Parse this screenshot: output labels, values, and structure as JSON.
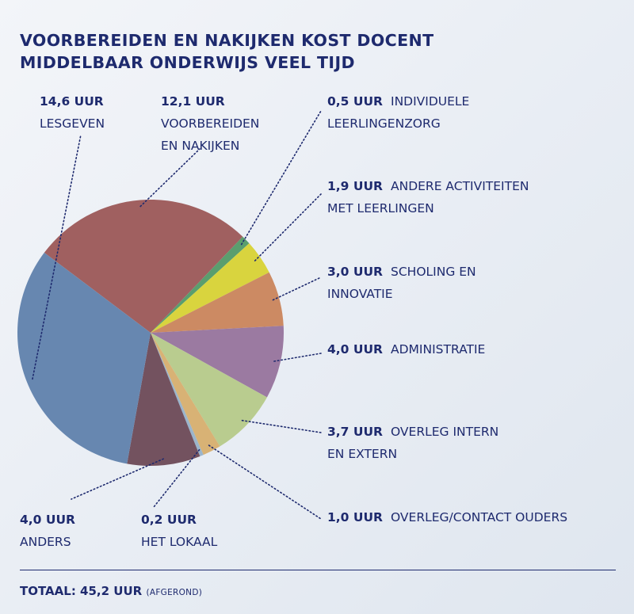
{
  "chart_data": {
    "type": "pie",
    "title_lines": [
      "VOORBEREIDEN EN NAKIJKEN KOST DOCENT",
      "MIDDELBAAR ONDERWIJS VEEL TIJD"
    ],
    "unit": "UUR",
    "slices": [
      {
        "value_label": "12,1 UUR",
        "name_lines": [
          "VOORBEREIDEN",
          "EN NAKIJKEN"
        ],
        "value": 12.1,
        "color": "#a06060"
      },
      {
        "value_label": "0,5 UUR",
        "name_lines": [
          "INDIVIDUELE",
          "LEERLINGENZORG"
        ],
        "value": 0.5,
        "color": "#5a9e6e"
      },
      {
        "value_label": "1,9 UUR",
        "name_lines": [
          "ANDERE ACTIVITEITEN",
          "MET LEERLINGEN"
        ],
        "value": 1.9,
        "color": "#d9d43e"
      },
      {
        "value_label": "3,0 UUR",
        "name_lines": [
          "SCHOLING EN",
          "INNOVATIE"
        ],
        "value": 3.0,
        "color": "#cc8a63"
      },
      {
        "value_label": "4,0 UUR",
        "name_lines": [
          "ADMINISTRATIE"
        ],
        "value": 4.0,
        "color": "#9b7aa1"
      },
      {
        "value_label": "3,7 UUR",
        "name_lines": [
          "OVERLEG INTERN",
          "EN EXTERN"
        ],
        "value": 3.7,
        "color": "#b9cc8f"
      },
      {
        "value_label": "1,0 UUR",
        "name_lines": [
          "OVERLEG/CONTACT OUDERS"
        ],
        "value": 1.0,
        "color": "#d8b275"
      },
      {
        "value_label": "0,2 UUR",
        "name_lines": [
          "HET LOKAAL"
        ],
        "value": 0.2,
        "color": "#9bb5cc"
      },
      {
        "value_label": "4,0 UUR",
        "name_lines": [
          "ANDERS"
        ],
        "value": 4.0,
        "color": "#73525f"
      },
      {
        "value_label": "14,6 UUR",
        "name_lines": [
          "LESGEVEN"
        ],
        "value": 14.6,
        "color": "#6787b0"
      }
    ],
    "total_label": "TOTAAL: 45,2 UUR",
    "total_note": "(AFGEROND)"
  }
}
